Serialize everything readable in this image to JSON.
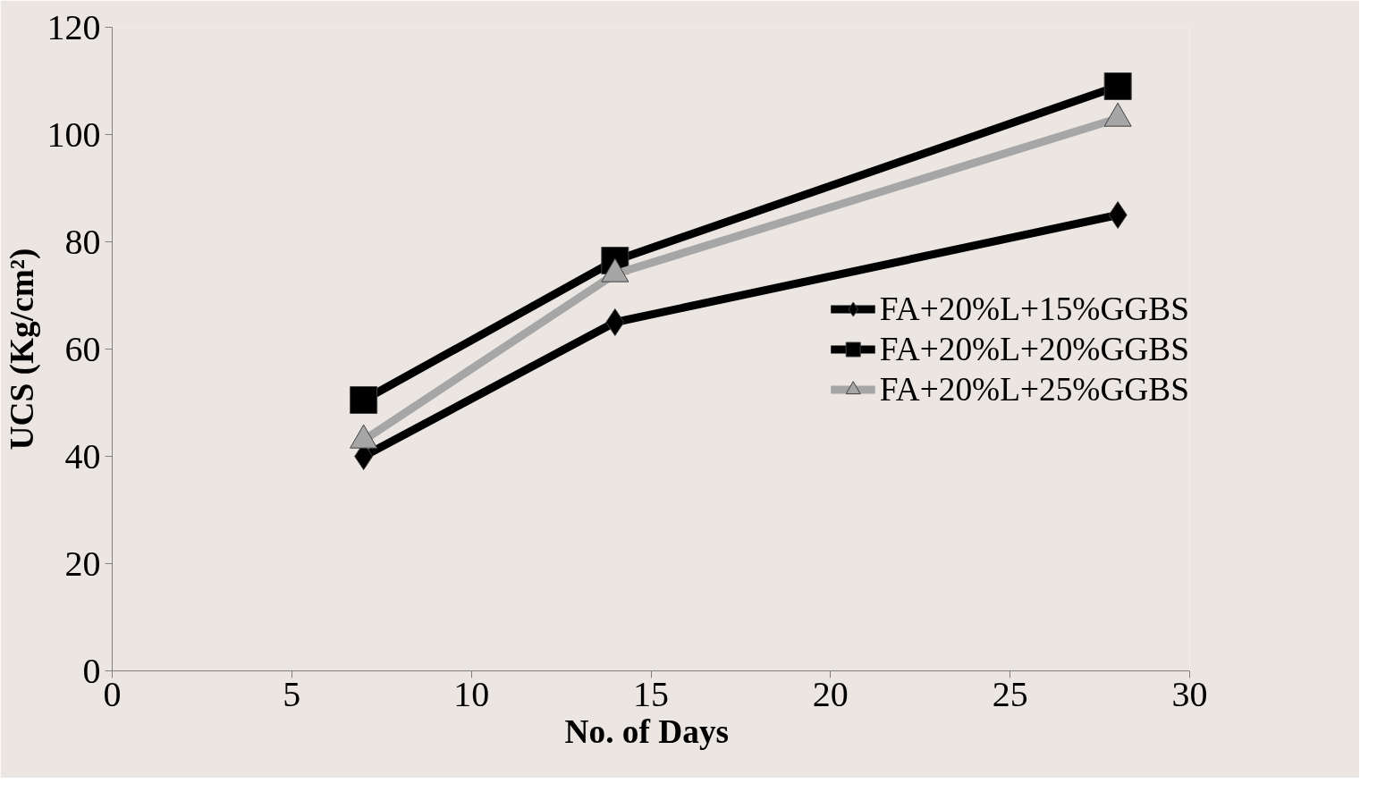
{
  "chart_data": {
    "type": "line",
    "xlabel": "No. of  Days",
    "ylabel": "UCS (Kg/cm²)",
    "x": [
      7,
      14,
      28
    ],
    "series": [
      {
        "name": "FA+20%L+15%GGBS",
        "color": "#000000",
        "marker": "diamond",
        "values": [
          40,
          65,
          85
        ]
      },
      {
        "name": "FA+20%L+20%GGBS",
        "color": "#000000",
        "marker": "square",
        "values": [
          50.5,
          76.5,
          109
        ]
      },
      {
        "name": "FA+20%L+25%GGBS",
        "color": "#a6a6a6",
        "marker": "triangle",
        "values": [
          43,
          74,
          103
        ]
      }
    ],
    "xlim": [
      0,
      30
    ],
    "xticks": [
      0,
      5,
      10,
      15,
      20,
      25,
      30
    ],
    "ylim": [
      0,
      120
    ],
    "yticks": [
      0,
      20,
      40,
      60,
      80,
      100,
      120
    ],
    "grid": false,
    "legend": "right",
    "line_style": "solid"
  }
}
